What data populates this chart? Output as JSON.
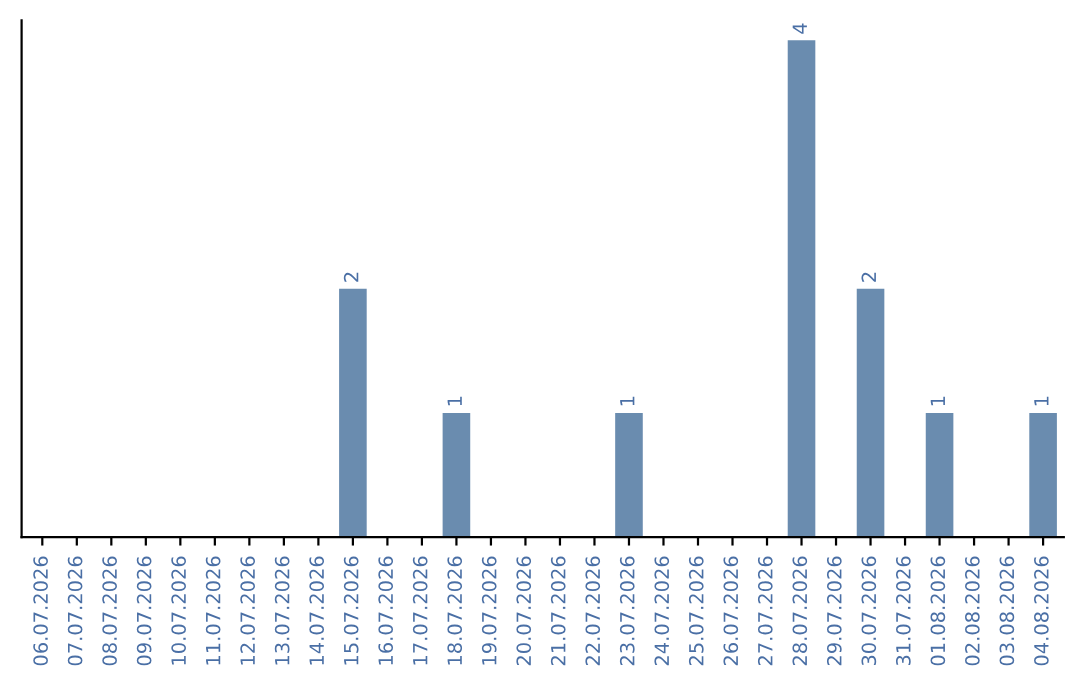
{
  "chart_data": {
    "type": "bar",
    "categories": [
      "06.07.2026",
      "07.07.2026",
      "08.07.2026",
      "09.07.2026",
      "10.07.2026",
      "11.07.2026",
      "12.07.2026",
      "13.07.2026",
      "14.07.2026",
      "15.07.2026",
      "16.07.2026",
      "17.07.2026",
      "18.07.2026",
      "19.07.2026",
      "20.07.2026",
      "21.07.2026",
      "22.07.2026",
      "23.07.2026",
      "24.07.2026",
      "25.07.2026",
      "26.07.2026",
      "27.07.2026",
      "28.07.2026",
      "29.07.2026",
      "30.07.2026",
      "31.07.2026",
      "01.08.2026",
      "02.08.2026",
      "03.08.2026",
      "04.08.2026"
    ],
    "values": [
      0,
      0,
      0,
      0,
      0,
      0,
      0,
      0,
      0,
      2,
      0,
      0,
      1,
      0,
      0,
      0,
      0,
      1,
      0,
      0,
      0,
      0,
      4,
      0,
      2,
      0,
      1,
      0,
      0,
      1
    ],
    "value_labels": [
      null,
      null,
      null,
      null,
      null,
      null,
      null,
      null,
      null,
      "2",
      null,
      null,
      "1",
      null,
      null,
      null,
      null,
      "1",
      null,
      null,
      null,
      null,
      "4",
      null,
      "2",
      null,
      "1",
      null,
      null,
      "1"
    ],
    "color": "#6a8caf",
    "tick_labels": "x",
    "grid": false
  }
}
